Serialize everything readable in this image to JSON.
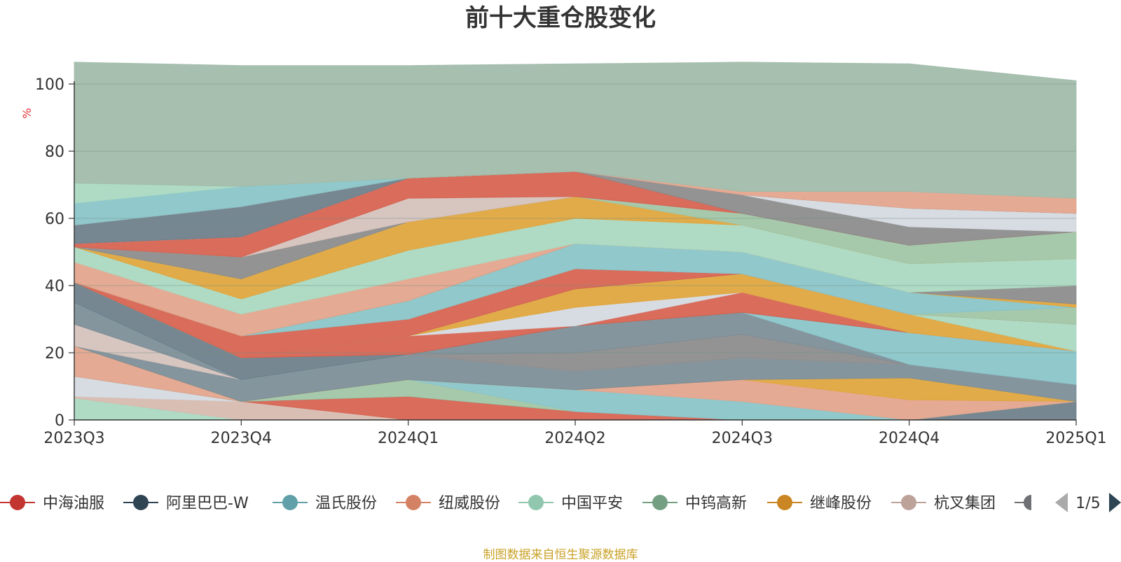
{
  "chart_data": {
    "type": "area",
    "title": "前十大重仓股变化",
    "ylabel": "%",
    "ylim": [
      0,
      100
    ],
    "y_ticks": [
      "0",
      "20",
      "40",
      "60",
      "80",
      "100"
    ],
    "categories": [
      "2023Q3",
      "2023Q4",
      "2024Q1",
      "2024Q2",
      "2024Q3",
      "2024Q4",
      "2025Q1"
    ],
    "stacked": true,
    "series": [
      {
        "color": "#a8d8c0",
        "values": [
          6.5,
          0,
          0,
          0,
          0,
          0,
          0
        ]
      },
      {
        "color": "#d6b8ae",
        "values": [
          0.5,
          5.5,
          0,
          0,
          0,
          0,
          0
        ]
      },
      {
        "color": "#d4d9e0",
        "values": [
          6,
          0,
          0,
          0,
          0,
          0,
          0
        ]
      },
      {
        "color": "#d6604d",
        "values": [
          0,
          0,
          7,
          2.5,
          0,
          0,
          0
        ]
      },
      {
        "color": "#6a7d88",
        "values": [
          0,
          0,
          0,
          0,
          0,
          0,
          5.5
        ]
      },
      {
        "color": "#9fc4a4",
        "values": [
          0,
          0,
          5,
          0,
          0,
          0,
          0
        ]
      },
      {
        "color": "#88c3c8",
        "values": [
          0,
          0,
          0,
          6.5,
          5.5,
          0,
          0
        ]
      },
      {
        "color": "#e3a38a",
        "values": [
          9,
          0,
          0,
          0,
          6.5,
          6,
          0
        ]
      },
      {
        "color": "#e0a43a",
        "values": [
          0,
          0,
          0,
          0,
          0,
          6.5,
          0
        ]
      },
      {
        "color": "#7b8c96",
        "values": [
          0,
          6.5,
          7.5,
          5.5,
          6.5,
          4,
          5
        ]
      },
      {
        "color": "#d4c0bb",
        "values": [
          6.5,
          0,
          0,
          0,
          0,
          0,
          0
        ]
      },
      {
        "color": "#8a8a8a",
        "values": [
          0,
          0,
          0,
          5.5,
          7,
          0,
          0
        ]
      },
      {
        "color": "#7b8c96",
        "values": [
          6.5,
          0,
          0,
          8,
          6.5,
          0,
          0
        ]
      },
      {
        "color": "#88c3c8",
        "values": [
          0,
          0,
          0,
          0,
          0,
          9.5,
          10
        ]
      },
      {
        "color": "#6a7d88",
        "values": [
          6,
          6.5,
          0,
          0,
          0,
          0,
          0
        ]
      },
      {
        "color": "#d6604d",
        "values": [
          0,
          0,
          5.5,
          0,
          6,
          0,
          0
        ]
      },
      {
        "color": "#d4d9e0",
        "values": [
          0,
          0,
          0,
          5.5,
          0,
          0,
          0
        ]
      },
      {
        "color": "#e0a43a",
        "values": [
          0,
          0,
          0,
          5.5,
          5.5,
          5.5,
          0
        ]
      },
      {
        "color": "#a8d8c0",
        "values": [
          0,
          0,
          0,
          0,
          0,
          0,
          8
        ]
      },
      {
        "color": "#d6604d",
        "values": [
          0,
          6.5,
          5,
          6,
          0,
          0,
          0
        ]
      },
      {
        "color": "#9fc4a4",
        "values": [
          0,
          0,
          0,
          0,
          0,
          0,
          5
        ]
      },
      {
        "color": "#88c3c8",
        "values": [
          0,
          0,
          5.5,
          7.5,
          6.5,
          6.5,
          0
        ]
      },
      {
        "color": "#e0a43a",
        "values": [
          0,
          0,
          0,
          0,
          0,
          0,
          1
        ]
      },
      {
        "color": "#8a8a8a",
        "values": [
          0,
          0,
          0,
          0,
          0,
          0,
          5.5
        ]
      },
      {
        "color": "#e3a38a",
        "values": [
          6,
          6.5,
          6.5,
          0,
          0,
          0,
          0
        ]
      },
      {
        "color": "#a8d8c0",
        "values": [
          4.5,
          4.5,
          8.5,
          7.5,
          8,
          8.5,
          8
        ]
      },
      {
        "color": "#e0a43a",
        "values": [
          0,
          6,
          8.5,
          6.5,
          0,
          0,
          0
        ]
      },
      {
        "color": "#9fc4a4",
        "values": [
          0,
          0,
          0,
          0,
          3.5,
          5.5,
          8
        ]
      },
      {
        "color": "#8a8a8a",
        "values": [
          0,
          6.5,
          0,
          0,
          0,
          0,
          0
        ]
      },
      {
        "color": "#d4c0bb",
        "values": [
          0,
          0,
          7,
          0,
          0,
          0,
          0
        ]
      },
      {
        "color": "#d6604d",
        "values": [
          1,
          6,
          6,
          7.5,
          0,
          0,
          0
        ]
      },
      {
        "color": "#8a8a8a",
        "values": [
          0,
          0,
          0,
          0,
          5.5,
          5.5,
          0
        ]
      },
      {
        "color": "#d4d9e0",
        "values": [
          0,
          0,
          0,
          0,
          0,
          5.5,
          5.5
        ]
      },
      {
        "color": "#6a7d88",
        "values": [
          5.5,
          9,
          0,
          0,
          0,
          0,
          0
        ]
      },
      {
        "color": "#e3a38a",
        "values": [
          0,
          0,
          0,
          0,
          1,
          5,
          4.5
        ]
      },
      {
        "color": "#88c3c8",
        "values": [
          6.5,
          6,
          0,
          0,
          0,
          0,
          0
        ]
      },
      {
        "color": "#a8d8c0",
        "values": [
          6,
          0,
          0,
          0,
          0,
          0,
          0
        ]
      },
      {
        "color": "#9fbaa8",
        "values": [
          36,
          36,
          33.5,
          32,
          38.5,
          38,
          35
        ]
      }
    ]
  },
  "legend": {
    "items": [
      {
        "label": "中海油服",
        "color": "#c23531"
      },
      {
        "label": "阿里巴巴-W",
        "color": "#2f4554"
      },
      {
        "label": "温氏股份",
        "color": "#61a0a8"
      },
      {
        "label": "纽威股份",
        "color": "#d48265"
      },
      {
        "label": "中国平安",
        "color": "#91c7ae"
      },
      {
        "label": "中钨高新",
        "color": "#749f83"
      },
      {
        "label": "继峰股份",
        "color": "#ca8622"
      },
      {
        "label": "杭叉集团",
        "color": "#bda29a"
      },
      {
        "label": "",
        "color": "#6e7074"
      }
    ],
    "page_indicator": "1/5"
  },
  "source_note": "制图数据来自恒生聚源数据库"
}
